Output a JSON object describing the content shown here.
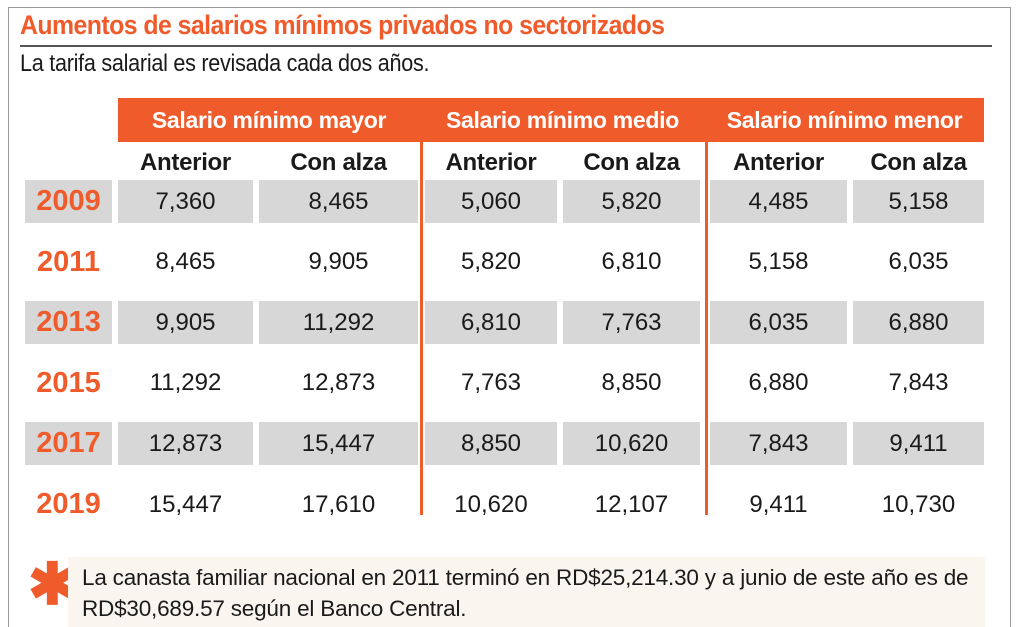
{
  "title": "Aumentos de salarios mínimos privados no sectorizados",
  "subtitle": "La tarifa salarial es revisada cada dos años.",
  "note": "La canasta familiar nacional en 2011 terminó en RD$25,214.30 y a junio de este año es de RD$30,689.57 según el Banco Central.",
  "accent": "#ef5b2b",
  "chart_data": {
    "type": "table",
    "groups": [
      "Salario mínimo mayor",
      "Salario mínimo medio",
      "Salario mínimo menor"
    ],
    "columns": [
      "Anterior",
      "Con alza",
      "Anterior",
      "Con alza",
      "Anterior",
      "Con alza"
    ],
    "rows": [
      {
        "year": "2009",
        "values": [
          "7,360",
          "8,465",
          "5,060",
          "5,820",
          "4,485",
          "5,158"
        ]
      },
      {
        "year": "2011",
        "values": [
          "8,465",
          "9,905",
          "5,820",
          "6,810",
          "5,158",
          "6,035"
        ]
      },
      {
        "year": "2013",
        "values": [
          "9,905",
          "11,292",
          "6,810",
          "7,763",
          "6,035",
          "6,880"
        ]
      },
      {
        "year": "2015",
        "values": [
          "11,292",
          "12,873",
          "7,763",
          "8,850",
          "6,880",
          "7,843"
        ]
      },
      {
        "year": "2017",
        "values": [
          "12,873",
          "15,447",
          "8,850",
          "10,620",
          "7,843",
          "9,411"
        ]
      },
      {
        "year": "2019",
        "values": [
          "15,447",
          "17,610",
          "10,620",
          "12,107",
          "9,411",
          "10,730"
        ]
      }
    ]
  }
}
